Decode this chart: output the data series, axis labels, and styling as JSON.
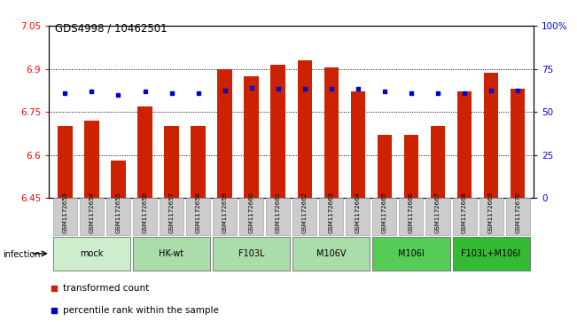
{
  "title": "GDS4998 / 10462501",
  "samples": [
    "GSM1172653",
    "GSM1172654",
    "GSM1172655",
    "GSM1172656",
    "GSM1172657",
    "GSM1172658",
    "GSM1172659",
    "GSM1172660",
    "GSM1172661",
    "GSM1172662",
    "GSM1172663",
    "GSM1172664",
    "GSM1172665",
    "GSM1172666",
    "GSM1172667",
    "GSM1172668",
    "GSM1172669",
    "GSM1172670"
  ],
  "bar_values": [
    6.7,
    6.72,
    6.58,
    6.77,
    6.7,
    6.7,
    6.9,
    6.875,
    6.915,
    6.93,
    6.905,
    6.82,
    6.67,
    6.67,
    6.7,
    6.82,
    6.885,
    6.83
  ],
  "percentile_values": [
    6.815,
    6.82,
    6.81,
    6.82,
    6.815,
    6.815,
    6.825,
    6.835,
    6.83,
    6.83,
    6.83,
    6.83,
    6.82,
    6.815,
    6.815,
    6.815,
    6.825,
    6.825
  ],
  "bar_color": "#cc2200",
  "percentile_color": "#0000cc",
  "ylim_left": [
    6.45,
    7.05
  ],
  "ylim_right": [
    0,
    100
  ],
  "yticks_left": [
    6.45,
    6.6,
    6.75,
    6.9,
    7.05
  ],
  "yticks_right": [
    0,
    25,
    50,
    75,
    100
  ],
  "ytick_labels_left": [
    "6.45",
    "6.6",
    "6.75",
    "6.9",
    "7.05"
  ],
  "ytick_labels_right": [
    "0",
    "25",
    "50",
    "75",
    "100%"
  ],
  "groups": [
    {
      "label": "mock",
      "start": 0,
      "end": 2,
      "color": "#cceecc"
    },
    {
      "label": "HK-wt",
      "start": 3,
      "end": 5,
      "color": "#aaddaa"
    },
    {
      "label": "F103L",
      "start": 6,
      "end": 8,
      "color": "#aaddaa"
    },
    {
      "label": "M106V",
      "start": 9,
      "end": 11,
      "color": "#aaddaa"
    },
    {
      "label": "M106I",
      "start": 12,
      "end": 14,
      "color": "#55cc55"
    },
    {
      "label": "F103L+M106I",
      "start": 15,
      "end": 17,
      "color": "#33bb33"
    }
  ],
  "infection_label": "infection",
  "legend_items": [
    {
      "label": "transformed count",
      "color": "#cc2200"
    },
    {
      "label": "percentile rank within the sample",
      "color": "#0000cc"
    }
  ],
  "bar_width": 0.55,
  "background_color": "#ffffff",
  "sample_bg_color": "#cccccc",
  "sample_edge_color": "#999999"
}
